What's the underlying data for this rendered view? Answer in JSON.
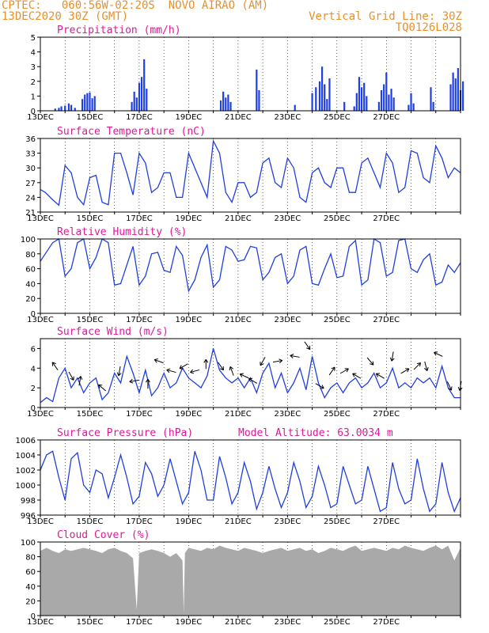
{
  "header": {
    "line1_left": "CPTEC:   060:56W-02:20S  NOVO AIRAO (AM)",
    "line2_left": "13DEC2020 30Z (GMT)",
    "line1_right": "Vertical Grid Line: 30Z",
    "line2_right": "TQ0126L028"
  },
  "colors": {
    "header": "#e8902a",
    "title": "#e0189a",
    "line": "#1f3fe0",
    "bar": "#1f3fe0",
    "cloud": "#a9a9a9",
    "grid": "#000000"
  },
  "chart_data": [
    {
      "type": "bar",
      "title": "Precipitation (mm/h)",
      "ylim": [
        0,
        5
      ],
      "yticks": [
        "0",
        "1",
        "2",
        "3",
        "4",
        "5"
      ],
      "xticks": [
        "13DEC",
        "15DEC",
        "17DEC",
        "19DEC",
        "21DEC",
        "23DEC",
        "25DEC",
        "27DEC"
      ],
      "bars": [
        [
          0.6,
          0.15
        ],
        [
          0.75,
          0.2
        ],
        [
          0.85,
          0.3
        ],
        [
          1.0,
          0.35
        ],
        [
          1.15,
          0.5
        ],
        [
          1.25,
          0.4
        ],
        [
          1.4,
          0.2
        ],
        [
          1.7,
          0.8
        ],
        [
          1.8,
          1.1
        ],
        [
          1.9,
          1.2
        ],
        [
          2.0,
          1.25
        ],
        [
          2.1,
          0.85
        ],
        [
          2.2,
          1.0
        ],
        [
          3.7,
          0.6
        ],
        [
          3.8,
          1.3
        ],
        [
          3.9,
          0.9
        ],
        [
          4.0,
          1.9
        ],
        [
          4.1,
          2.3
        ],
        [
          4.2,
          3.5
        ],
        [
          4.3,
          1.5
        ],
        [
          7.3,
          0.7
        ],
        [
          7.4,
          1.3
        ],
        [
          7.5,
          0.9
        ],
        [
          7.6,
          1.1
        ],
        [
          7.7,
          0.6
        ],
        [
          8.75,
          2.8
        ],
        [
          8.85,
          1.4
        ],
        [
          10.3,
          0.4
        ],
        [
          11.0,
          1.2
        ],
        [
          11.15,
          1.6
        ],
        [
          11.3,
          2.0
        ],
        [
          11.4,
          3.0
        ],
        [
          11.5,
          1.8
        ],
        [
          11.6,
          0.8
        ],
        [
          11.7,
          2.2
        ],
        [
          12.3,
          0.6
        ],
        [
          12.7,
          0.3
        ],
        [
          12.8,
          1.2
        ],
        [
          12.9,
          2.3
        ],
        [
          13.0,
          1.6
        ],
        [
          13.1,
          1.9
        ],
        [
          13.2,
          1.0
        ],
        [
          13.7,
          0.6
        ],
        [
          13.8,
          1.4
        ],
        [
          13.9,
          1.8
        ],
        [
          14.0,
          2.6
        ],
        [
          14.1,
          1.1
        ],
        [
          14.2,
          1.5
        ],
        [
          14.3,
          0.9
        ],
        [
          14.9,
          0.4
        ],
        [
          15.0,
          1.2
        ],
        [
          15.1,
          0.5
        ],
        [
          15.8,
          1.6
        ],
        [
          15.9,
          0.6
        ],
        [
          16.6,
          1.8
        ],
        [
          16.7,
          2.6
        ],
        [
          16.8,
          2.2
        ],
        [
          16.9,
          2.9
        ],
        [
          17.0,
          1.4
        ],
        [
          17.1,
          2.0
        ]
      ]
    },
    {
      "type": "line",
      "title": "Surface Temperature (nC)",
      "ylim": [
        21,
        36
      ],
      "yticks": [
        "21",
        "24",
        "27",
        "30",
        "33",
        "36"
      ],
      "xticks": [
        "13DEC",
        "15DEC",
        "17DEC",
        "19DEC",
        "21DEC",
        "23DEC",
        "25DEC",
        "27DEC"
      ],
      "x": [
        0,
        0.2,
        0.5,
        0.75,
        1.0,
        1.25,
        1.5,
        1.75,
        2.0,
        2.25,
        2.5,
        2.75,
        3.0,
        3.25,
        3.5,
        3.75,
        4.0,
        4.25,
        4.5,
        4.75,
        5.0,
        5.25,
        5.5,
        5.75,
        6.0,
        6.25,
        6.5,
        6.75,
        7.0,
        7.25,
        7.5,
        7.75,
        8.0,
        8.25,
        8.5,
        8.75,
        9.0,
        9.25,
        9.5,
        9.75,
        10.0,
        10.25,
        10.5,
        10.75,
        11.0,
        11.25,
        11.5,
        11.75,
        12.0,
        12.25,
        12.5,
        12.75,
        13.0,
        13.25,
        13.5,
        13.75,
        14.0,
        14.25,
        14.5,
        14.75,
        15.0,
        15.25,
        15.5,
        15.75,
        16.0,
        16.25,
        16.5,
        16.75,
        17.0
      ],
      "values": [
        25.6,
        25,
        23.5,
        22.4,
        30.5,
        29,
        24,
        22.5,
        28,
        28.5,
        23,
        22.5,
        33,
        33,
        29,
        24.5,
        33,
        31,
        25,
        26,
        29,
        29,
        24,
        24,
        33,
        30,
        27,
        24,
        35.5,
        33,
        25,
        23,
        27,
        27,
        24,
        25,
        31,
        32,
        27,
        26,
        32,
        30,
        24,
        23,
        29,
        30,
        27,
        26,
        30,
        30,
        25,
        25,
        31,
        32,
        29,
        26,
        33,
        31,
        25,
        26,
        33.5,
        33,
        28,
        27,
        34.5,
        32,
        28,
        30,
        29
      ]
    },
    {
      "type": "line",
      "title": "Relative Humidity (%)",
      "ylim": [
        0,
        100
      ],
      "yticks": [
        "0",
        "20",
        "40",
        "60",
        "80",
        "100"
      ],
      "xticks": [
        "13DEC",
        "15DEC",
        "17DEC",
        "19DEC",
        "21DEC",
        "23DEC",
        "25DEC",
        "27DEC"
      ],
      "x": [
        0,
        0.2,
        0.5,
        0.75,
        1.0,
        1.25,
        1.5,
        1.75,
        2.0,
        2.25,
        2.5,
        2.75,
        3.0,
        3.25,
        3.5,
        3.75,
        4.0,
        4.25,
        4.5,
        4.75,
        5.0,
        5.25,
        5.5,
        5.75,
        6.0,
        6.25,
        6.5,
        6.75,
        7.0,
        7.25,
        7.5,
        7.75,
        8.0,
        8.25,
        8.5,
        8.75,
        9.0,
        9.25,
        9.5,
        9.75,
        10.0,
        10.25,
        10.5,
        10.75,
        11.0,
        11.25,
        11.5,
        11.75,
        12.0,
        12.25,
        12.5,
        12.75,
        13.0,
        13.25,
        13.5,
        13.75,
        14.0,
        14.25,
        14.5,
        14.75,
        15.0,
        15.25,
        15.5,
        15.75,
        16.0,
        16.25,
        16.5,
        16.75,
        17.0
      ],
      "values": [
        70,
        80,
        95,
        100,
        50,
        60,
        95,
        100,
        60,
        75,
        100,
        95,
        38,
        40,
        65,
        90,
        38,
        50,
        80,
        82,
        58,
        55,
        90,
        78,
        30,
        45,
        75,
        92,
        35,
        45,
        90,
        85,
        70,
        72,
        90,
        88,
        45,
        55,
        75,
        80,
        40,
        50,
        85,
        90,
        40,
        38,
        60,
        80,
        48,
        50,
        90,
        98,
        38,
        45,
        100,
        95,
        50,
        55,
        98,
        100,
        60,
        55,
        72,
        80,
        38,
        42,
        65,
        55,
        68
      ]
    },
    {
      "type": "line",
      "title": "Surface Wind (m/s)",
      "ylim": [
        0,
        7
      ],
      "yticks": [
        "0",
        "2",
        "4",
        "6"
      ],
      "xticks": [
        "13DEC",
        "15DEC",
        "17DEC",
        "19DEC",
        "21DEC",
        "23DEC",
        "25DEC",
        "27DEC"
      ],
      "x": [
        0,
        0.25,
        0.5,
        0.75,
        1.0,
        1.25,
        1.5,
        1.75,
        2.0,
        2.25,
        2.5,
        2.75,
        3.0,
        3.25,
        3.5,
        3.75,
        4.0,
        4.25,
        4.5,
        4.75,
        5.0,
        5.25,
        5.5,
        5.75,
        6.0,
        6.25,
        6.5,
        6.75,
        7.0,
        7.25,
        7.5,
        7.75,
        8.0,
        8.25,
        8.5,
        8.75,
        9.0,
        9.25,
        9.5,
        9.75,
        10.0,
        10.25,
        10.5,
        10.75,
        11.0,
        11.25,
        11.5,
        11.75,
        12.0,
        12.25,
        12.5,
        12.75,
        13.0,
        13.25,
        13.5,
        13.75,
        14.0,
        14.25,
        14.5,
        14.75,
        15.0,
        15.25,
        15.5,
        15.75,
        16.0,
        16.25,
        16.5,
        16.75,
        17.0
      ],
      "values": [
        0.5,
        1.0,
        0.6,
        3.0,
        4.0,
        2.0,
        3.0,
        1.5,
        2.5,
        3.0,
        0.8,
        1.5,
        3.5,
        2.5,
        5.2,
        3.5,
        1.5,
        3.8,
        1.2,
        2.0,
        3.5,
        2.0,
        2.5,
        4.0,
        3.0,
        2.5,
        2.0,
        3.2,
        6.0,
        3.8,
        3.0,
        2.5,
        3.0,
        2.0,
        3.0,
        1.5,
        3.5,
        4.5,
        2.0,
        3.5,
        1.5,
        2.5,
        4.0,
        1.8,
        5.2,
        2.5,
        1.0,
        2.0,
        2.5,
        1.5,
        2.5,
        3.0,
        2.0,
        2.5,
        3.5,
        2.0,
        2.5,
        4.0,
        2.0,
        2.5,
        2.0,
        3.0,
        2.5,
        3.0,
        2.0,
        4.2,
        2.0,
        1.0,
        1.0
      ],
      "arrows": [
        [
          0.6,
          235
        ],
        [
          1.25,
          60
        ],
        [
          1.6,
          280
        ],
        [
          2.5,
          220
        ],
        [
          3.2,
          100
        ],
        [
          3.8,
          170
        ],
        [
          4.35,
          270
        ],
        [
          4.8,
          200
        ],
        [
          5.3,
          195
        ],
        [
          5.8,
          150
        ],
        [
          6.25,
          165
        ],
        [
          6.7,
          270
        ],
        [
          7.3,
          55
        ],
        [
          7.75,
          250
        ],
        [
          8.25,
          205
        ],
        [
          8.6,
          210
        ],
        [
          9.0,
          120
        ],
        [
          9.6,
          350
        ],
        [
          10.3,
          190
        ],
        [
          10.8,
          55
        ],
        [
          11.3,
          30
        ],
        [
          11.8,
          305
        ],
        [
          12.3,
          330
        ],
        [
          12.8,
          210
        ],
        [
          13.35,
          50
        ],
        [
          13.75,
          210
        ],
        [
          14.25,
          100
        ],
        [
          14.75,
          330
        ],
        [
          15.25,
          315
        ],
        [
          15.6,
          75
        ],
        [
          16.1,
          205
        ],
        [
          16.55,
          65
        ],
        [
          17.0,
          100
        ]
      ]
    },
    {
      "type": "line",
      "title": "Surface Pressure (hPa)",
      "annotation": "Model Altitude: 63.0034 m",
      "ylim": [
        996,
        1006
      ],
      "yticks": [
        "996",
        "998",
        "1000",
        "1002",
        "1004",
        "1006"
      ],
      "xticks": [
        "13DEC",
        "15DEC",
        "17DEC",
        "19DEC",
        "21DEC",
        "23DEC",
        "25DEC",
        "27DEC"
      ],
      "x": [
        0,
        0.25,
        0.5,
        0.75,
        1.0,
        1.25,
        1.5,
        1.75,
        2.0,
        2.25,
        2.5,
        2.75,
        3.0,
        3.25,
        3.5,
        3.75,
        4.0,
        4.25,
        4.5,
        4.75,
        5.0,
        5.25,
        5.5,
        5.75,
        6.0,
        6.25,
        6.5,
        6.75,
        7.0,
        7.25,
        7.5,
        7.75,
        8.0,
        8.25,
        8.5,
        8.75,
        9.0,
        9.25,
        9.5,
        9.75,
        10.0,
        10.25,
        10.5,
        10.75,
        11.0,
        11.25,
        11.5,
        11.75,
        12.0,
        12.25,
        12.5,
        12.75,
        13.0,
        13.25,
        13.5,
        13.75,
        14.0,
        14.25,
        14.5,
        14.75,
        15.0,
        15.25,
        15.5,
        15.75,
        16.0,
        16.25,
        16.5,
        16.75,
        17.0
      ],
      "values": [
        1002,
        1004,
        1004.5,
        1001,
        998,
        1003.5,
        1004.3,
        1000,
        999,
        1002,
        1001.5,
        998.3,
        1001,
        1004,
        1001,
        997.5,
        998.5,
        1003,
        1001.5,
        998.5,
        1000,
        1003.5,
        1000.5,
        997.5,
        999,
        1004.5,
        1002,
        998,
        998,
        1003.8,
        1001,
        997.5,
        999,
        1003,
        1000.5,
        996.8,
        999,
        1002.5,
        999.5,
        997,
        999,
        1003,
        1000.5,
        997,
        998.5,
        1002.5,
        1000,
        997,
        997.5,
        1002.5,
        1000,
        997.5,
        998,
        1002.5,
        999.5,
        996.5,
        997,
        1003,
        999.5,
        997.5,
        998,
        1003.5,
        999.5,
        996.5,
        997.5,
        1003,
        999,
        996.5,
        998.3
      ]
    },
    {
      "type": "area",
      "title": "Cloud Cover (%)",
      "ylim": [
        0,
        100
      ],
      "yticks": [
        "0",
        "20",
        "40",
        "60",
        "80",
        "100"
      ],
      "xticks": [
        "13DEC",
        "15DEC",
        "17DEC",
        "19DEC",
        "21DEC",
        "23DEC",
        "25DEC",
        "27DEC"
      ],
      "x": [
        0,
        0.25,
        0.5,
        0.75,
        1.0,
        1.25,
        1.5,
        1.75,
        2.0,
        2.25,
        2.5,
        2.75,
        3.0,
        3.25,
        3.5,
        3.75,
        3.9,
        4.0,
        4.25,
        4.5,
        4.75,
        5.0,
        5.25,
        5.5,
        5.75,
        5.8,
        5.85,
        6.0,
        6.25,
        6.5,
        6.75,
        7.0,
        7.25,
        7.5,
        7.75,
        8.0,
        8.25,
        8.5,
        8.75,
        9.0,
        9.25,
        9.5,
        9.75,
        10.0,
        10.25,
        10.5,
        10.75,
        11.0,
        11.25,
        11.5,
        11.75,
        12.0,
        12.25,
        12.5,
        12.75,
        13.0,
        13.25,
        13.5,
        13.75,
        14.0,
        14.25,
        14.5,
        14.75,
        15.0,
        15.25,
        15.5,
        15.75,
        16.0,
        16.25,
        16.5,
        16.75,
        17.0
      ],
      "values": [
        88,
        92,
        88,
        85,
        90,
        88,
        90,
        92,
        90,
        88,
        85,
        90,
        92,
        88,
        85,
        78,
        8,
        85,
        88,
        90,
        88,
        85,
        80,
        85,
        75,
        3,
        85,
        92,
        90,
        88,
        92,
        90,
        95,
        92,
        90,
        88,
        92,
        90,
        88,
        85,
        88,
        90,
        92,
        88,
        90,
        92,
        88,
        90,
        85,
        88,
        92,
        90,
        88,
        92,
        95,
        88,
        90,
        92,
        90,
        88,
        92,
        90,
        95,
        92,
        90,
        88,
        92,
        95,
        90,
        95,
        75,
        92
      ]
    }
  ]
}
